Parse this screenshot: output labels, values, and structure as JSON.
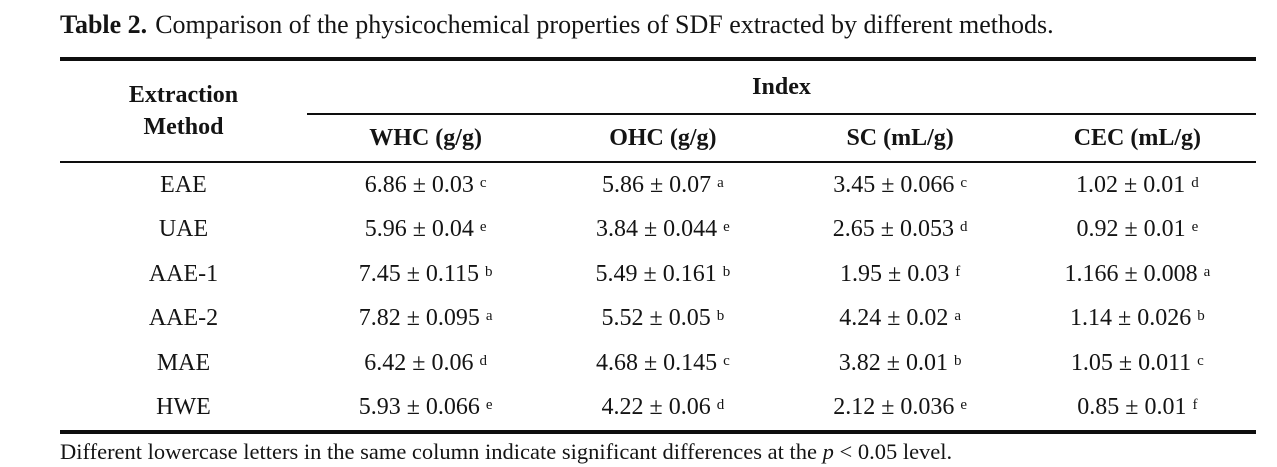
{
  "title": {
    "label": "Table 2.",
    "text": "Comparison of the physicochemical properties of SDF extracted by different methods."
  },
  "table": {
    "corner_header_line1": "Extraction",
    "corner_header_line2": "Method",
    "group_header": "Index",
    "columns": [
      "WHC (g/g)",
      "OHC (g/g)",
      "SC (mL/g)",
      "CEC (mL/g)"
    ],
    "rows": [
      {
        "method": "EAE",
        "whc": "6.86 ± 0.03",
        "whc_sup": "c",
        "ohc": "5.86 ± 0.07",
        "ohc_sup": "a",
        "sc": "3.45 ± 0.066",
        "sc_sup": "c",
        "cec": "1.02 ± 0.01",
        "cec_sup": "d"
      },
      {
        "method": "UAE",
        "whc": "5.96 ± 0.04",
        "whc_sup": "e",
        "ohc": "3.84 ± 0.044",
        "ohc_sup": "e",
        "sc": "2.65 ± 0.053",
        "sc_sup": "d",
        "cec": "0.92 ± 0.01",
        "cec_sup": "e"
      },
      {
        "method": "AAE-1",
        "whc": "7.45 ± 0.115",
        "whc_sup": "b",
        "ohc": "5.49 ± 0.161",
        "ohc_sup": "b",
        "sc": "1.95 ± 0.03",
        "sc_sup": "f",
        "cec": "1.166 ± 0.008",
        "cec_sup": "a"
      },
      {
        "method": "AAE-2",
        "whc": "7.82 ± 0.095",
        "whc_sup": "a",
        "ohc": "5.52 ± 0.05",
        "ohc_sup": "b",
        "sc": "4.24 ± 0.02",
        "sc_sup": "a",
        "cec": "1.14 ± 0.026",
        "cec_sup": "b"
      },
      {
        "method": "MAE",
        "whc": "6.42 ± 0.06",
        "whc_sup": "d",
        "ohc": "4.68 ± 0.145",
        "ohc_sup": "c",
        "sc": "3.82 ± 0.01",
        "sc_sup": "b",
        "cec": "1.05 ± 0.011",
        "cec_sup": "c"
      },
      {
        "method": "HWE",
        "whc": "5.93 ± 0.066",
        "whc_sup": "e",
        "ohc": "4.22 ± 0.06",
        "ohc_sup": "d",
        "sc": "2.12 ± 0.036",
        "sc_sup": "e",
        "cec": "0.85 ± 0.01",
        "cec_sup": "f"
      }
    ]
  },
  "footnote": {
    "before_italic": "Different lowercase letters in the same column indicate significant differences at the ",
    "italic": "p",
    "after_italic": " < 0.05 level."
  }
}
